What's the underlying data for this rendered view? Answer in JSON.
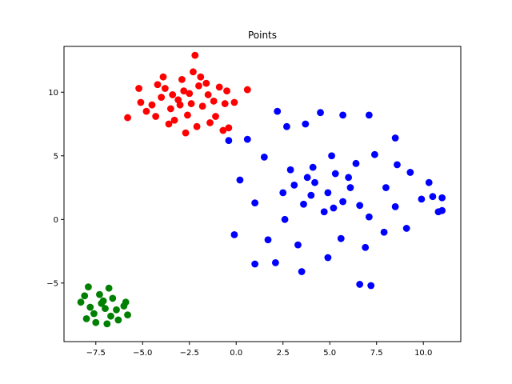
{
  "chart_data": {
    "type": "scatter",
    "title": "Points",
    "xlabel": "",
    "ylabel": "",
    "xlim": [
      -9.2,
      12.0
    ],
    "ylim": [
      -9.6,
      13.6
    ],
    "grid": false,
    "xticks": [
      -7.5,
      -5.0,
      -2.5,
      0.0,
      2.5,
      5.0,
      7.5,
      10.0
    ],
    "xtick_labels": [
      "−7.5",
      "−5.0",
      "−2.5",
      "0.0",
      "2.5",
      "5.0",
      "7.5",
      "10.0"
    ],
    "yticks": [
      -5,
      0,
      5,
      10
    ],
    "ytick_labels": [
      "−5",
      "0",
      "5",
      "10"
    ],
    "series": [
      {
        "color": "#ff0000",
        "points": [
          [
            -2.2,
            12.9
          ],
          [
            -2.4,
            9.1
          ],
          [
            -3.1,
            9.4
          ],
          [
            -1.8,
            8.9
          ],
          [
            -2.8,
            10.1
          ],
          [
            -3.5,
            8.7
          ],
          [
            -1.5,
            9.8
          ],
          [
            -2.0,
            10.5
          ],
          [
            -4.0,
            9.6
          ],
          [
            -3.8,
            10.3
          ],
          [
            -1.2,
            9.3
          ],
          [
            -2.6,
            8.2
          ],
          [
            -3.3,
            7.8
          ],
          [
            -2.9,
            11.0
          ],
          [
            -1.9,
            11.2
          ],
          [
            -4.5,
            9.0
          ],
          [
            -5.1,
            9.2
          ],
          [
            -5.8,
            8.0
          ],
          [
            -4.8,
            8.5
          ],
          [
            -4.2,
            10.6
          ],
          [
            -0.6,
            9.1
          ],
          [
            -0.4,
            7.2
          ],
          [
            -0.7,
            7.0
          ],
          [
            -0.5,
            10.1
          ],
          [
            0.6,
            10.2
          ],
          [
            -0.1,
            9.2
          ],
          [
            -1.1,
            8.1
          ],
          [
            -1.4,
            7.6
          ],
          [
            -2.1,
            7.3
          ],
          [
            -2.7,
            6.8
          ],
          [
            -3.6,
            7.5
          ],
          [
            -3.9,
            11.2
          ],
          [
            -2.3,
            11.6
          ],
          [
            -1.6,
            10.7
          ],
          [
            -0.9,
            10.4
          ],
          [
            -5.2,
            10.3
          ],
          [
            -4.3,
            8.1
          ],
          [
            -3.0,
            9.0
          ],
          [
            -2.5,
            9.9
          ],
          [
            -3.4,
            9.8
          ]
        ]
      },
      {
        "color": "#0000ff",
        "points": [
          [
            4.9,
            2.1
          ],
          [
            5.7,
            1.4
          ],
          [
            4.2,
            2.9
          ],
          [
            3.6,
            1.2
          ],
          [
            6.1,
            2.5
          ],
          [
            5.3,
            3.6
          ],
          [
            4.7,
            0.6
          ],
          [
            3.1,
            2.7
          ],
          [
            6.6,
            1.1
          ],
          [
            2.2,
            8.5
          ],
          [
            4.5,
            8.4
          ],
          [
            5.7,
            8.2
          ],
          [
            7.1,
            8.2
          ],
          [
            8.5,
            6.4
          ],
          [
            2.7,
            7.3
          ],
          [
            3.7,
            7.5
          ],
          [
            -0.4,
            6.2
          ],
          [
            0.6,
            6.3
          ],
          [
            0.2,
            3.1
          ],
          [
            -0.1,
            -1.2
          ],
          [
            1.0,
            -3.5
          ],
          [
            2.1,
            -3.4
          ],
          [
            3.5,
            -4.1
          ],
          [
            4.9,
            -3.0
          ],
          [
            6.6,
            -5.1
          ],
          [
            7.2,
            -5.2
          ],
          [
            8.5,
            1.0
          ],
          [
            9.1,
            -0.7
          ],
          [
            10.3,
            2.9
          ],
          [
            10.5,
            1.8
          ],
          [
            11.0,
            1.7
          ],
          [
            11.0,
            0.7
          ],
          [
            10.8,
            0.6
          ],
          [
            9.9,
            1.6
          ],
          [
            8.6,
            4.3
          ],
          [
            7.4,
            5.1
          ],
          [
            1.5,
            4.9
          ],
          [
            1.0,
            1.3
          ],
          [
            1.7,
            -1.6
          ],
          [
            2.6,
            0.0
          ],
          [
            3.3,
            -2.0
          ],
          [
            5.6,
            -1.5
          ],
          [
            6.9,
            -2.2
          ],
          [
            7.9,
            -1.0
          ],
          [
            4.1,
            4.1
          ],
          [
            5.1,
            5.0
          ],
          [
            6.4,
            4.4
          ],
          [
            3.8,
            3.3
          ],
          [
            2.5,
            2.1
          ],
          [
            7.1,
            0.2
          ],
          [
            8.0,
            2.5
          ],
          [
            9.3,
            3.7
          ],
          [
            6.0,
            3.3
          ],
          [
            5.2,
            0.9
          ],
          [
            4.0,
            1.9
          ],
          [
            2.9,
            3.9
          ]
        ]
      },
      {
        "color": "#008000",
        "points": [
          [
            -7.9,
            -5.3
          ],
          [
            -6.8,
            -5.4
          ],
          [
            -7.2,
            -6.6
          ],
          [
            -6.4,
            -7.1
          ],
          [
            -7.6,
            -7.4
          ],
          [
            -8.3,
            -6.5
          ],
          [
            -5.8,
            -7.5
          ],
          [
            -6.9,
            -8.2
          ],
          [
            -7.5,
            -8.1
          ],
          [
            -6.0,
            -6.8
          ],
          [
            -7.0,
            -7.0
          ],
          [
            -6.6,
            -6.2
          ],
          [
            -7.8,
            -6.9
          ],
          [
            -8.0,
            -7.8
          ],
          [
            -6.3,
            -7.9
          ],
          [
            -7.3,
            -5.9
          ],
          [
            -6.7,
            -7.6
          ],
          [
            -7.1,
            -6.4
          ],
          [
            -5.9,
            -6.5
          ],
          [
            -8.1,
            -6.0
          ]
        ]
      }
    ]
  }
}
